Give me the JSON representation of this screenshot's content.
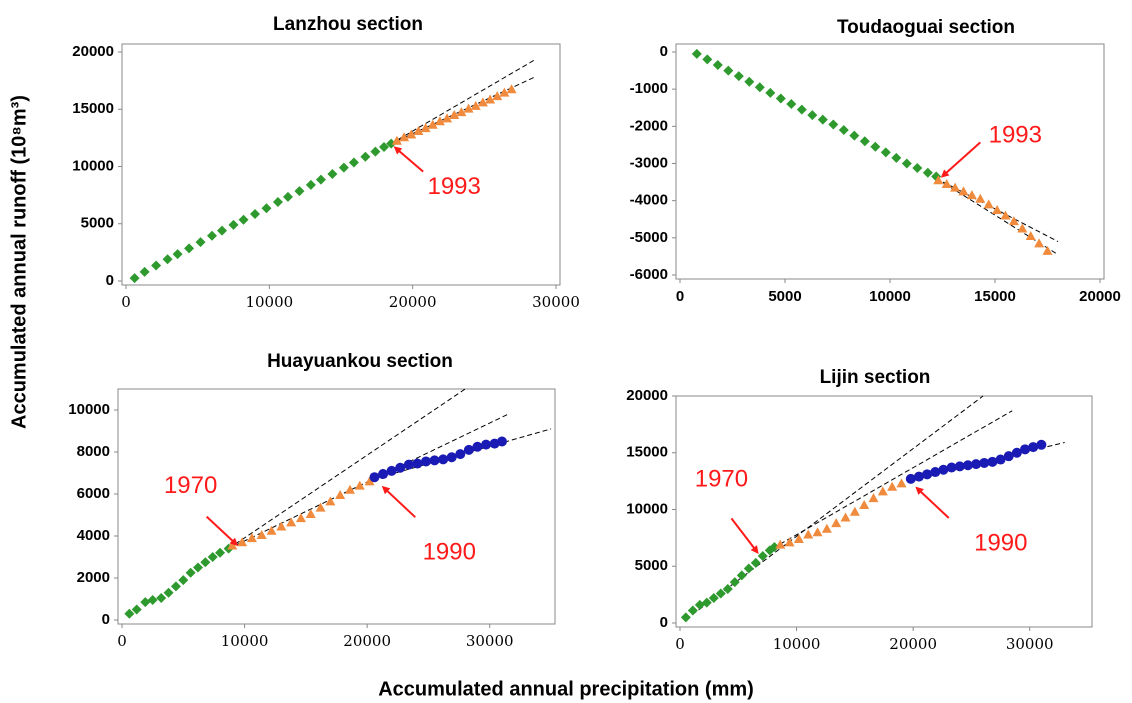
{
  "figure": {
    "xlabel": "Accumulated annual precipitation (mm)",
    "ylabel": "Accumulated annual runoff (10⁸m³)"
  },
  "chart_data": [
    {
      "type": "scatter",
      "title": "Lanzhou section",
      "xlim": [
        0,
        30000
      ],
      "xticks": [
        0,
        10000,
        20000,
        30000
      ],
      "ylim": [
        0,
        20000
      ],
      "yticks": [
        0,
        5000,
        10000,
        15000,
        20000
      ],
      "series": [
        {
          "color": "#2e9a2e",
          "marker": "diamond",
          "x": [
            600,
            1300,
            2100,
            2900,
            3600,
            4400,
            5200,
            6000,
            6700,
            7500,
            8200,
            9000,
            9800,
            10600,
            11300,
            12100,
            12900,
            13600,
            14400,
            15200,
            15900,
            16700,
            17400,
            18000,
            18500
          ],
          "values": [
            250,
            800,
            1350,
            1900,
            2350,
            2850,
            3400,
            3950,
            4400,
            4900,
            5350,
            5850,
            6350,
            6900,
            7350,
            7850,
            8400,
            8850,
            9350,
            9900,
            10350,
            10850,
            11300,
            11700,
            12000
          ]
        },
        {
          "color": "#f08a3c",
          "marker": "triangle",
          "x": [
            18900,
            19400,
            19900,
            20400,
            20900,
            21400,
            21900,
            22400,
            22900,
            23400,
            23900,
            24400,
            24900,
            25400,
            25900,
            26400,
            26900
          ],
          "values": [
            12250,
            12550,
            12800,
            13100,
            13350,
            13650,
            13950,
            14200,
            14500,
            14750,
            15050,
            15300,
            15600,
            15850,
            16150,
            16450,
            16750
          ]
        }
      ],
      "fits": [
        {
          "color": "#000000",
          "style": "dashed",
          "x": [
            18500,
            28500
          ],
          "values": [
            12000,
            19300
          ]
        },
        {
          "color": "#000000",
          "style": "dashed",
          "x": [
            18500,
            28500
          ],
          "values": [
            12000,
            17800
          ]
        }
      ],
      "annotations": [
        {
          "text": "1993",
          "x": 18500,
          "y": 12000
        }
      ]
    },
    {
      "type": "scatter",
      "title": "Toudaoguai section",
      "xlim": [
        0,
        20000
      ],
      "xticks": [
        0,
        5000,
        10000,
        15000,
        20000
      ],
      "ylim": [
        -6000,
        0
      ],
      "yticks": [
        -6000,
        -5000,
        -4000,
        -3000,
        -2000,
        -1000,
        0
      ],
      "series": [
        {
          "color": "#2e9a2e",
          "marker": "diamond",
          "x": [
            800,
            1300,
            1800,
            2300,
            2800,
            3300,
            3800,
            4300,
            4800,
            5300,
            5800,
            6300,
            6800,
            7300,
            7800,
            8300,
            8800,
            9300,
            9800,
            10300,
            10800,
            11300,
            11800,
            12200
          ],
          "values": [
            -50,
            -200,
            -350,
            -500,
            -650,
            -800,
            -950,
            -1100,
            -1250,
            -1400,
            -1550,
            -1700,
            -1820,
            -1950,
            -2100,
            -2250,
            -2400,
            -2550,
            -2700,
            -2850,
            -3000,
            -3120,
            -3250,
            -3350
          ]
        },
        {
          "color": "#f08a3c",
          "marker": "triangle",
          "x": [
            12300,
            12700,
            13100,
            13500,
            13900,
            14300,
            14700,
            15100,
            15500,
            15900,
            16300,
            16700,
            17100,
            17500
          ],
          "values": [
            -3450,
            -3550,
            -3650,
            -3750,
            -3850,
            -3950,
            -4100,
            -4250,
            -4400,
            -4550,
            -4750,
            -4950,
            -5150,
            -5350
          ]
        }
      ],
      "fits": [
        {
          "color": "#000000",
          "style": "dashed",
          "x": [
            12200,
            18000
          ],
          "values": [
            -3400,
            -5100
          ]
        },
        {
          "color": "#000000",
          "style": "dashed",
          "x": [
            12200,
            18000
          ],
          "values": [
            -3400,
            -5450
          ]
        }
      ],
      "annotations": [
        {
          "text": "1993",
          "x": 12300,
          "y": -3400
        }
      ]
    },
    {
      "type": "scatter",
      "title": "Huayuankou section",
      "xlim": [
        0,
        35000
      ],
      "xticks": [
        0,
        10000,
        20000,
        30000
      ],
      "ylim": [
        0,
        11000
      ],
      "yticks": [
        0,
        2000,
        4000,
        6000,
        8000,
        10000
      ],
      "series": [
        {
          "color": "#2e9a2e",
          "marker": "diamond",
          "x": [
            600,
            1200,
            1900,
            2500,
            3200,
            3800,
            4400,
            5000,
            5600,
            6200,
            6800,
            7400,
            8000,
            8700
          ],
          "values": [
            300,
            500,
            850,
            950,
            1050,
            1300,
            1600,
            1900,
            2250,
            2500,
            2750,
            3000,
            3200,
            3400
          ]
        },
        {
          "color": "#f08a3c",
          "marker": "triangle",
          "x": [
            9000,
            9800,
            10600,
            11400,
            12200,
            13000,
            13800,
            14600,
            15400,
            16200,
            17000,
            17800,
            18600,
            19400,
            20200
          ],
          "values": [
            3550,
            3700,
            3900,
            4050,
            4250,
            4450,
            4650,
            4850,
            5050,
            5350,
            5650,
            5950,
            6200,
            6400,
            6600
          ]
        },
        {
          "color": "#1a1ab4",
          "marker": "circle",
          "x": [
            20600,
            21300,
            22000,
            22700,
            23400,
            24100,
            24800,
            25500,
            26200,
            26900,
            27600,
            28300,
            29000,
            29700,
            30400,
            31000
          ],
          "values": [
            6800,
            6950,
            7100,
            7250,
            7400,
            7450,
            7550,
            7600,
            7650,
            7750,
            7900,
            8100,
            8250,
            8350,
            8400,
            8500
          ]
        }
      ],
      "fits": [
        {
          "color": "#000000",
          "style": "dashed",
          "x": [
            8700,
            28000
          ],
          "values": [
            3400,
            11000
          ]
        },
        {
          "color": "#000000",
          "style": "dashed",
          "x": [
            8700,
            31500
          ],
          "values": [
            3400,
            9800
          ]
        },
        {
          "color": "#000000",
          "style": "dashed",
          "x": [
            20500,
            35000
          ],
          "values": [
            6700,
            9100
          ]
        }
      ],
      "annotations": [
        {
          "text": "1970",
          "x": 8700,
          "y": 3400
        },
        {
          "text": "1990",
          "x": 20500,
          "y": 6800
        }
      ]
    },
    {
      "type": "scatter",
      "title": "Lijin section",
      "xlim": [
        0,
        35000
      ],
      "xticks": [
        0,
        10000,
        20000,
        30000
      ],
      "ylim": [
        0,
        20000
      ],
      "yticks": [
        0,
        5000,
        10000,
        15000,
        20000
      ],
      "series": [
        {
          "color": "#2e9a2e",
          "marker": "diamond",
          "x": [
            500,
            1100,
            1700,
            2300,
            2900,
            3500,
            4100,
            4700,
            5300,
            5900,
            6500,
            7100,
            7700,
            8100
          ],
          "values": [
            500,
            1100,
            1600,
            1800,
            2200,
            2600,
            3000,
            3600,
            4200,
            4800,
            5300,
            5900,
            6400,
            6700
          ]
        },
        {
          "color": "#f08a3c",
          "marker": "triangle",
          "x": [
            8600,
            9400,
            10200,
            11000,
            11800,
            12600,
            13400,
            14200,
            15000,
            15800,
            16600,
            17400,
            18200,
            19000
          ],
          "values": [
            6900,
            7100,
            7400,
            7800,
            8000,
            8300,
            8800,
            9300,
            9800,
            10400,
            11000,
            11600,
            12000,
            12300
          ]
        },
        {
          "color": "#1a1ab4",
          "marker": "circle",
          "x": [
            19800,
            20500,
            21200,
            21900,
            22600,
            23300,
            24000,
            24700,
            25400,
            26100,
            26800,
            27500,
            28200,
            28900,
            29600,
            30300,
            31000
          ],
          "values": [
            12700,
            12900,
            13100,
            13300,
            13500,
            13700,
            13800,
            13900,
            14000,
            14100,
            14200,
            14400,
            14700,
            15000,
            15300,
            15500,
            15700
          ]
        }
      ],
      "fits": [
        {
          "color": "#000000",
          "style": "dashed",
          "x": [
            500,
            26000
          ],
          "values": [
            300,
            20000
          ]
        },
        {
          "color": "#000000",
          "style": "dashed",
          "x": [
            8000,
            28500
          ],
          "values": [
            6600,
            18700
          ]
        },
        {
          "color": "#000000",
          "style": "dashed",
          "x": [
            19500,
            33000
          ],
          "values": [
            12600,
            15900
          ]
        }
      ],
      "annotations": [
        {
          "text": "1970",
          "x": 7500,
          "y": 6400
        },
        {
          "text": "1990",
          "x": 19800,
          "y": 12600
        }
      ]
    }
  ]
}
